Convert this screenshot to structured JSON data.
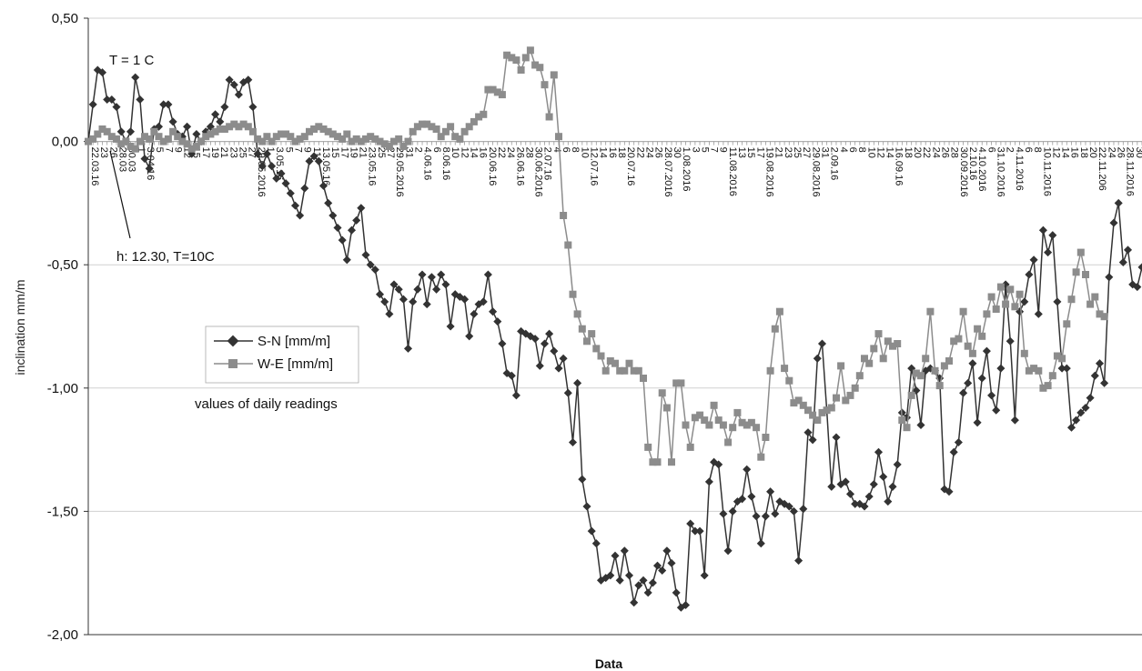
{
  "chart_data": {
    "type": "line",
    "title": "",
    "xlabel": "Data",
    "ylabel": "inclination mm/m",
    "ylim": [
      -2.0,
      0.5
    ],
    "y_ticks": [
      "0,50",
      "0,00",
      "-0,50",
      "-1,00",
      "-1,50",
      "-2,00"
    ],
    "y_tick_values": [
      0.5,
      0.0,
      -0.5,
      -1.0,
      -1.5,
      -2.0
    ],
    "grid": "horizontal",
    "legend_position": "left-middle",
    "colors": {
      "S-N [mm/m]": "#333333",
      "W-E [mm/m]": "#8c8c8c"
    },
    "annotations": [
      "T = 1 C",
      "h: 12.30, T=10C",
      "values of daily readings"
    ],
    "x_tick_labels": [
      "22.03.16",
      "23",
      "26",
      "28.03",
      "30.03",
      "1",
      "3.04.16",
      "5",
      "7",
      "9",
      "12",
      "15",
      "17",
      "19",
      "21",
      "23",
      "25",
      "27",
      "29.05.2016",
      "1",
      "3.05.16",
      "5",
      "7",
      "9",
      "11",
      "13.05.16",
      "15",
      "17",
      "19",
      "21",
      "23.05.16",
      "25",
      "27",
      "29.05.2016",
      "31",
      "2",
      "4.06.16",
      "6",
      "8.06.16",
      "10",
      "12",
      "14",
      "16",
      "20.06.16",
      "22",
      "24",
      "26.06.16",
      "28",
      "30.06.2016",
      "2.07.16",
      "4",
      "6",
      "8",
      "10",
      "12.07.16",
      "14",
      "16",
      "18",
      "20.07.16",
      "22",
      "24",
      "26",
      "28.07.2016",
      "30",
      "1.08.2016",
      "3",
      "5",
      "7",
      "9",
      "11.08.2016",
      "13",
      "15",
      "17",
      "19.08.2016",
      "21",
      "23",
      "25",
      "27",
      "29.08.2016",
      "31",
      "2.09.16",
      "4",
      "6",
      "8",
      "10",
      "12",
      "14",
      "16.09.16",
      "18",
      "20",
      "22",
      "24",
      "26",
      "28",
      "30.09.2016",
      "2.10.16",
      "4.10.2016",
      "6",
      "31.10.2016",
      "2",
      "4.11.2016",
      "6",
      "8",
      "10.11.2016",
      "12",
      "14",
      "16",
      "18",
      "20",
      "22.11.206",
      "24",
      "26",
      "28.11.2016",
      "30",
      "2"
    ],
    "series": [
      {
        "name": "S-N [mm/m]",
        "values": [
          0.0,
          0.15,
          0.29,
          0.28,
          0.17,
          0.17,
          0.14,
          0.04,
          0.0,
          0.04,
          0.26,
          0.17,
          -0.07,
          -0.11,
          0.05,
          0.06,
          0.15,
          0.15,
          0.08,
          0.03,
          0.02,
          0.06,
          -0.05,
          0.03,
          0.0,
          0.04,
          0.06,
          0.11,
          0.08,
          0.14,
          0.25,
          0.23,
          0.19,
          0.24,
          0.25,
          0.14,
          -0.05,
          -0.1,
          -0.05,
          -0.1,
          -0.15,
          -0.13,
          -0.17,
          -0.21,
          -0.26,
          -0.3,
          -0.19,
          -0.08,
          -0.06,
          -0.08,
          -0.18,
          -0.25,
          -0.3,
          -0.35,
          -0.4,
          -0.48,
          -0.36,
          -0.32,
          -0.27,
          -0.46,
          -0.5,
          -0.52,
          -0.62,
          -0.65,
          -0.7,
          -0.58,
          -0.6,
          -0.64,
          -0.84,
          -0.65,
          -0.6,
          -0.54,
          -0.66,
          -0.55,
          -0.6,
          -0.54,
          -0.58,
          -0.75,
          -0.62,
          -0.63,
          -0.64,
          -0.79,
          -0.7,
          -0.66,
          -0.65,
          -0.54,
          -0.69,
          -0.73,
          -0.82,
          -0.94,
          -0.95,
          -1.03,
          -0.77,
          -0.78,
          -0.79,
          -0.8,
          -0.91,
          -0.82,
          -0.78,
          -0.85,
          -0.92,
          -0.88,
          -1.02,
          -1.22,
          -0.98,
          -1.37,
          -1.48,
          -1.58,
          -1.63,
          -1.78,
          -1.77,
          -1.76,
          -1.68,
          -1.78,
          -1.66,
          -1.76,
          -1.87,
          -1.8,
          -1.78,
          -1.83,
          -1.79,
          -1.72,
          -1.74,
          -1.66,
          -1.71,
          -1.83,
          -1.89,
          -1.88,
          -1.55,
          -1.58,
          -1.58,
          -1.76,
          -1.38,
          -1.3,
          -1.31,
          -1.51,
          -1.66,
          -1.5,
          -1.46,
          -1.45,
          -1.33,
          -1.44,
          -1.52,
          -1.63,
          -1.52,
          -1.42,
          -1.51,
          -1.46,
          -1.47,
          -1.48,
          -1.5,
          -1.7,
          -1.49,
          -1.18,
          -1.21,
          -0.88,
          -0.82,
          -1.09,
          -1.4,
          -1.2,
          -1.39,
          -1.38,
          -1.43,
          -1.47,
          -1.47,
          -1.48,
          -1.44,
          -1.39,
          -1.26,
          -1.36,
          -1.46,
          -1.4,
          -1.31,
          -1.1,
          -1.12,
          -0.92,
          -1.01,
          -1.15,
          -0.93,
          -0.92,
          -0.93,
          -0.96,
          -1.41,
          -1.42,
          -1.26,
          -1.22,
          -1.02,
          -0.98,
          -0.9,
          -1.14,
          -0.96,
          -0.85,
          -1.03,
          -1.09,
          -0.92,
          -0.58,
          -0.81,
          -1.13,
          -0.69,
          -0.65,
          -0.54,
          -0.48,
          -0.7,
          -0.36,
          -0.45,
          -0.38,
          -0.65,
          -0.92,
          -0.92,
          -1.16,
          -1.13,
          -1.1,
          -1.08,
          -1.04,
          -0.95,
          -0.9,
          -0.98,
          -0.55,
          -0.33,
          -0.25,
          -0.49,
          -0.44,
          -0.58,
          -0.59,
          -0.51
        ]
      },
      {
        "name": "W-E [mm/m]",
        "values": [
          0.0,
          0.01,
          0.03,
          0.05,
          0.04,
          0.02,
          0.01,
          -0.01,
          0.0,
          -0.02,
          -0.03,
          0.0,
          0.02,
          0.01,
          0.04,
          0.02,
          0.0,
          0.01,
          0.04,
          0.02,
          0.0,
          -0.01,
          -0.03,
          -0.02,
          0.0,
          0.02,
          0.03,
          0.04,
          0.05,
          0.05,
          0.06,
          0.07,
          0.06,
          0.07,
          0.06,
          0.04,
          0.01,
          0.0,
          0.02,
          0.0,
          0.02,
          0.03,
          0.03,
          0.02,
          0.0,
          0.01,
          0.02,
          0.04,
          0.05,
          0.06,
          0.05,
          0.04,
          0.03,
          0.02,
          0.01,
          0.03,
          0.0,
          0.01,
          0.0,
          0.01,
          0.02,
          0.01,
          0.0,
          -0.01,
          -0.02,
          0.0,
          0.01,
          -0.02,
          0.0,
          0.04,
          0.06,
          0.07,
          0.07,
          0.06,
          0.05,
          0.02,
          0.04,
          0.06,
          0.02,
          0.01,
          0.04,
          0.06,
          0.08,
          0.1,
          0.11,
          0.21,
          0.21,
          0.2,
          0.19,
          0.35,
          0.34,
          0.33,
          0.29,
          0.34,
          0.37,
          0.31,
          0.3,
          0.23,
          0.1,
          0.27,
          0.02,
          -0.3,
          -0.42,
          -0.62,
          -0.7,
          -0.76,
          -0.81,
          -0.78,
          -0.84,
          -0.87,
          -0.93,
          -0.89,
          -0.9,
          -0.93,
          -0.93,
          -0.9,
          -0.93,
          -0.93,
          -0.96,
          -1.24,
          -1.3,
          -1.3,
          -1.02,
          -1.08,
          -1.3,
          -0.98,
          -0.98,
          -1.15,
          -1.24,
          -1.12,
          -1.11,
          -1.13,
          -1.15,
          -1.07,
          -1.13,
          -1.15,
          -1.22,
          -1.16,
          -1.1,
          -1.14,
          -1.15,
          -1.14,
          -1.16,
          -1.28,
          -1.2,
          -0.93,
          -0.76,
          -0.69,
          -0.92,
          -0.97,
          -1.06,
          -1.05,
          -1.07,
          -1.09,
          -1.11,
          -1.13,
          -1.1,
          -1.09,
          -1.08,
          -1.04,
          -0.91,
          -1.05,
          -1.03,
          -1.0,
          -0.95,
          -0.88,
          -0.9,
          -0.84,
          -0.78,
          -0.88,
          -0.81,
          -0.83,
          -0.82,
          -1.13,
          -1.16,
          -1.03,
          -0.94,
          -0.95,
          -0.88,
          -0.69,
          -0.93,
          -0.99,
          -0.91,
          -0.89,
          -0.81,
          -0.8,
          -0.69,
          -0.83,
          -0.86,
          -0.76,
          -0.79,
          -0.7,
          -0.63,
          -0.68,
          -0.59,
          -0.66,
          -0.6,
          -0.67,
          -0.62,
          -0.86,
          -0.93,
          -0.92,
          -0.93,
          -1.0,
          -0.99,
          -0.95,
          -0.87,
          -0.88,
          -0.74,
          -0.64,
          -0.53,
          -0.45,
          -0.54,
          -0.66,
          -0.63,
          -0.7,
          -0.71
        ]
      }
    ]
  }
}
